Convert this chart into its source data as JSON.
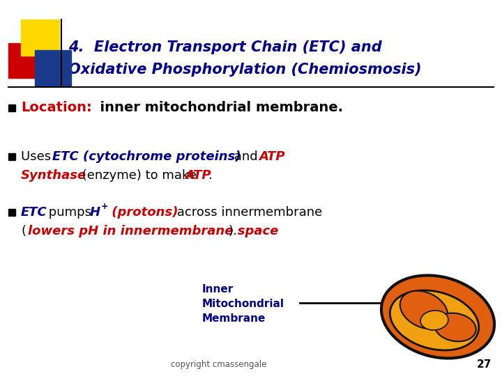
{
  "bg_color": "#ffffff",
  "title_line1": "4.  Electron Transport Chain (ETC) and",
  "title_line2": "Oxidative Phosphorylation (Chemiosmosis)",
  "title_color": "#00008B",
  "red_color": "#CC0000",
  "blue_color": "#00008B",
  "copyright": "copyright cmassengale",
  "page_num": "27",
  "decoration_yellow": "#FFD700",
  "decoration_red": "#CC0000",
  "decoration_blue": "#1a3a8a",
  "line_color": "#000000",
  "bullet_color": "#000000",
  "mito_orange": "#E06010",
  "mito_yellow": "#F0A010",
  "mito_outline": "#111111"
}
